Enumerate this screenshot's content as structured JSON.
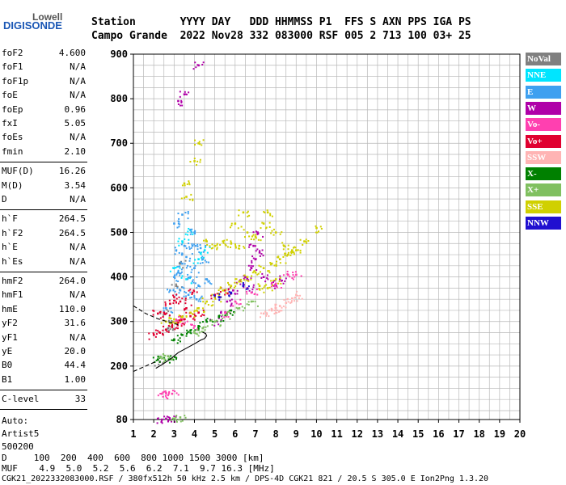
{
  "logo": {
    "line1": "Lowell",
    "line2": "DIGISONDE"
  },
  "header": {
    "row1": "Station       YYYY DAY   DDD HHMMSS P1  FFS S AXN PPS IGA PS",
    "row2": "Campo Grande  2022 Nov28 332 083000 RSF 005 2 713 100 03+ 25"
  },
  "params": {
    "group1": [
      {
        "key": "foF2",
        "value": "4.600"
      },
      {
        "key": "foF1",
        "value": "N/A"
      },
      {
        "key": "foF1p",
        "value": "N/A"
      },
      {
        "key": "foE",
        "value": "N/A"
      },
      {
        "key": "foEp",
        "value": "0.96"
      },
      {
        "key": "fxI",
        "value": "5.05"
      },
      {
        "key": "foEs",
        "value": "N/A"
      },
      {
        "key": "fmin",
        "value": "2.10"
      }
    ],
    "group2": [
      {
        "key": "MUF(D)",
        "value": "16.26"
      },
      {
        "key": "M(D)",
        "value": "3.54"
      },
      {
        "key": "D",
        "value": "N/A"
      }
    ],
    "group3": [
      {
        "key": "h`F",
        "value": "264.5"
      },
      {
        "key": "h`F2",
        "value": "264.5"
      },
      {
        "key": "h`E",
        "value": "N/A"
      },
      {
        "key": "h`Es",
        "value": "N/A"
      }
    ],
    "group4": [
      {
        "key": "hmF2",
        "value": "264.0"
      },
      {
        "key": "hmF1",
        "value": "N/A"
      },
      {
        "key": "hmE",
        "value": "110.0"
      },
      {
        "key": "yF2",
        "value": "31.6"
      },
      {
        "key": "yF1",
        "value": "N/A"
      },
      {
        "key": "yE",
        "value": "20.0"
      },
      {
        "key": "B0",
        "value": "44.4"
      },
      {
        "key": "B1",
        "value": "1.00"
      }
    ],
    "group5": [
      {
        "key": "C-level",
        "value": "33"
      }
    ],
    "auto": [
      "Auto:",
      "Artist5",
      "500200"
    ]
  },
  "legend": [
    {
      "label": "NoVal",
      "color": "#808080"
    },
    {
      "label": "NNE",
      "color": "#00e5ff"
    },
    {
      "label": "E",
      "color": "#3ea0f0"
    },
    {
      "label": "W",
      "color": "#b000a8"
    },
    {
      "label": "Vo-",
      "color": "#ff40b0"
    },
    {
      "label": "Vo+",
      "color": "#e00030"
    },
    {
      "label": "SSW",
      "color": "#ffb4b4"
    },
    {
      "label": "X-",
      "color": "#008000"
    },
    {
      "label": "X+",
      "color": "#80c060"
    },
    {
      "label": "SSE",
      "color": "#d0d000"
    },
    {
      "label": "NNW",
      "color": "#2010d0"
    }
  ],
  "footer": {
    "row1": "D     100  200  400  600  800 1000 1500 3000 [km]",
    "row2": "MUF    4.9  5.0  5.2  5.6  6.2  7.1  9.7 16.3 [MHz]",
    "row3": "CGK21_2022332083000.RSF / 380fx512h 50 kHz 2.5 km / DPS-4D CGK21 821 / 20.5 S 305.0 E Ion2Png 1.3.20"
  },
  "chart_data": {
    "type": "scatter",
    "xlim": [
      1,
      20
    ],
    "ylim": [
      80,
      900
    ],
    "x_ticks": [
      1,
      2,
      3,
      4,
      5,
      6,
      7,
      8,
      9,
      10,
      11,
      12,
      13,
      14,
      15,
      16,
      17,
      18,
      19,
      20
    ],
    "y_ticks": [
      80,
      200,
      300,
      400,
      500,
      600,
      700,
      800,
      900
    ],
    "grid": true,
    "legend_placement": "right",
    "series": [
      {
        "name": "NoVal",
        "color": "#808080",
        "points": [
          [
            2.3,
            210
          ],
          [
            2.5,
            320
          ],
          [
            2.9,
            300
          ],
          [
            3.1,
            380
          ],
          [
            3.3,
            430
          ],
          [
            2.7,
            285
          ]
        ]
      },
      {
        "name": "NNE",
        "color": "#00e5ff",
        "points": [
          [
            3.0,
            420
          ],
          [
            3.4,
            480
          ],
          [
            3.6,
            395
          ],
          [
            4.2,
            440
          ],
          [
            3.8,
            505
          ],
          [
            4.5,
            460
          ]
        ]
      },
      {
        "name": "E",
        "color": "#3ea0f0",
        "points": [
          [
            2.6,
            330
          ],
          [
            2.8,
            370
          ],
          [
            3.0,
            400
          ],
          [
            3.2,
            410
          ],
          [
            3.4,
            430
          ],
          [
            3.6,
            445
          ],
          [
            3.8,
            400
          ],
          [
            4.0,
            420
          ],
          [
            4.2,
            380
          ],
          [
            4.4,
            440
          ],
          [
            4.6,
            395
          ],
          [
            3.1,
            460
          ],
          [
            3.5,
            470
          ],
          [
            3.9,
            470
          ],
          [
            4.3,
            465
          ],
          [
            3.3,
            370
          ],
          [
            3.7,
            360
          ],
          [
            4.1,
            350
          ],
          [
            3.0,
            520
          ],
          [
            3.4,
            540
          ],
          [
            4.0,
            500
          ]
        ]
      },
      {
        "name": "W",
        "color": "#b000a8",
        "points": [
          [
            3.2,
            795
          ],
          [
            3.5,
            810
          ],
          [
            4.2,
            875
          ],
          [
            5.0,
            300
          ],
          [
            5.3,
            320
          ],
          [
            5.6,
            345
          ],
          [
            5.9,
            370
          ],
          [
            6.2,
            390
          ],
          [
            6.5,
            400
          ],
          [
            6.8,
            420
          ],
          [
            7.0,
            440
          ],
          [
            7.2,
            455
          ],
          [
            6.6,
            375
          ],
          [
            7.4,
            400
          ],
          [
            7.8,
            385
          ],
          [
            8.2,
            395
          ],
          [
            6.9,
            470
          ],
          [
            7.1,
            500
          ],
          [
            2.4,
            80
          ],
          [
            2.6,
            82
          ],
          [
            2.8,
            80
          ]
        ]
      },
      {
        "name": "Vo-",
        "color": "#ff40b0",
        "points": [
          [
            2.4,
            138
          ],
          [
            2.6,
            140
          ],
          [
            2.9,
            138
          ],
          [
            3.1,
            300
          ],
          [
            3.4,
            305
          ],
          [
            4.0,
            290
          ],
          [
            5.5,
            320
          ],
          [
            6.0,
            345
          ],
          [
            6.8,
            365
          ],
          [
            8.0,
            385
          ],
          [
            8.6,
            405
          ],
          [
            9.0,
            405
          ]
        ]
      },
      {
        "name": "Vo+",
        "color": "#e00030",
        "points": [
          [
            2.0,
            270
          ],
          [
            2.3,
            275
          ],
          [
            2.6,
            282
          ],
          [
            2.9,
            290
          ],
          [
            3.2,
            298
          ],
          [
            3.5,
            305
          ],
          [
            3.8,
            312
          ],
          [
            2.2,
            318
          ],
          [
            2.5,
            320
          ],
          [
            2.8,
            340
          ],
          [
            3.0,
            355
          ],
          [
            3.3,
            345
          ],
          [
            3.6,
            330
          ],
          [
            3.9,
            365
          ],
          [
            4.2,
            320
          ],
          [
            5.0,
            360
          ],
          [
            5.5,
            370
          ]
        ]
      },
      {
        "name": "SSW",
        "color": "#ffb4b4",
        "points": [
          [
            7.4,
            318
          ],
          [
            7.8,
            325
          ],
          [
            8.2,
            335
          ],
          [
            8.5,
            342
          ],
          [
            8.8,
            352
          ],
          [
            9.0,
            360
          ],
          [
            8.0,
            330
          ]
        ]
      },
      {
        "name": "X-",
        "color": "#008000",
        "points": [
          [
            2.2,
            215
          ],
          [
            2.5,
            218
          ],
          [
            2.8,
            216
          ],
          [
            3.0,
            260
          ],
          [
            3.4,
            270
          ],
          [
            3.8,
            280
          ],
          [
            4.2,
            290
          ],
          [
            4.6,
            300
          ],
          [
            5.2,
            310
          ],
          [
            5.8,
            325
          ]
        ]
      },
      {
        "name": "X+",
        "color": "#80c060",
        "points": [
          [
            2.3,
            220
          ],
          [
            2.7,
            222
          ],
          [
            3.0,
            82
          ],
          [
            3.3,
            85
          ],
          [
            4.0,
            275
          ],
          [
            4.4,
            285
          ],
          [
            5.0,
            300
          ],
          [
            5.6,
            315
          ],
          [
            6.2,
            330
          ],
          [
            6.8,
            345
          ]
        ]
      },
      {
        "name": "SSE",
        "color": "#d0d000",
        "points": [
          [
            2.6,
            300
          ],
          [
            3.0,
            305
          ],
          [
            3.4,
            310
          ],
          [
            3.8,
            320
          ],
          [
            4.2,
            330
          ],
          [
            4.6,
            345
          ],
          [
            5.0,
            355
          ],
          [
            5.4,
            370
          ],
          [
            5.8,
            380
          ],
          [
            6.2,
            390
          ],
          [
            6.6,
            400
          ],
          [
            7.0,
            410
          ],
          [
            7.4,
            420
          ],
          [
            7.8,
            430
          ],
          [
            8.2,
            440
          ],
          [
            8.6,
            450
          ],
          [
            9.0,
            460
          ],
          [
            7.0,
            490
          ],
          [
            7.4,
            520
          ],
          [
            8.0,
            500
          ],
          [
            8.4,
            470
          ],
          [
            9.4,
            480
          ],
          [
            10.0,
            510
          ],
          [
            4.6,
            480
          ],
          [
            5.0,
            470
          ],
          [
            5.4,
            480
          ],
          [
            5.8,
            475
          ],
          [
            6.2,
            470
          ],
          [
            6.6,
            500
          ],
          [
            3.5,
            610
          ],
          [
            4.0,
            660
          ],
          [
            4.2,
            700
          ],
          [
            3.6,
            580
          ],
          [
            6.0,
            520
          ],
          [
            6.4,
            545
          ],
          [
            7.6,
            545
          ],
          [
            8.8,
            460
          ],
          [
            7.2,
            380
          ],
          [
            7.6,
            375
          ],
          [
            8.0,
            395
          ]
        ]
      },
      {
        "name": "NNW",
        "color": "#2010d0",
        "points": [
          [
            5.2,
            355
          ],
          [
            5.8,
            365
          ],
          [
            6.4,
            380
          ]
        ]
      }
    ],
    "traces": [
      {
        "style": "solid",
        "points": [
          [
            2.1,
            195
          ],
          [
            2.4,
            203
          ],
          [
            2.8,
            215
          ],
          [
            3.2,
            230
          ],
          [
            3.6,
            240
          ],
          [
            4.0,
            250
          ],
          [
            4.3,
            258
          ],
          [
            4.5,
            262
          ],
          [
            4.6,
            268
          ],
          [
            4.55,
            273
          ],
          [
            4.4,
            276
          ]
        ]
      },
      {
        "style": "dashed",
        "points": [
          [
            1.0,
            188
          ],
          [
            1.5,
            198
          ],
          [
            2.1,
            210
          ]
        ]
      },
      {
        "style": "dashed",
        "points": [
          [
            1.0,
            335
          ],
          [
            1.6,
            318
          ],
          [
            2.2,
            306
          ],
          [
            2.8,
            298
          ],
          [
            3.2,
            293
          ]
        ]
      }
    ]
  }
}
